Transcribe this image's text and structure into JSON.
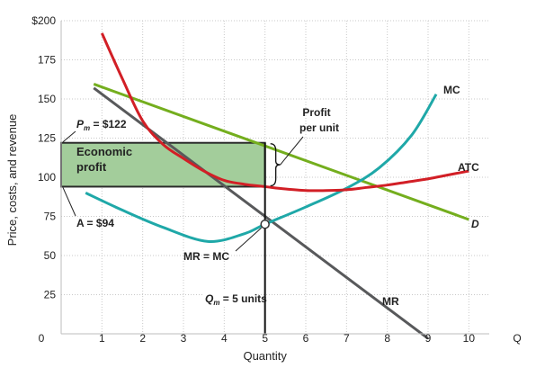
{
  "chart_data": {
    "type": "line",
    "title": "",
    "xlabel": "Quantity",
    "ylabel": "Price, costs, and revenue",
    "x_axis_symbol": "Q",
    "xlim": [
      0,
      10.5
    ],
    "ylim": [
      0,
      200
    ],
    "x_ticks": [
      0,
      1,
      2,
      3,
      4,
      5,
      6,
      7,
      8,
      9,
      10
    ],
    "y_ticks": [
      25,
      50,
      75,
      100,
      125,
      150,
      175,
      200
    ],
    "y_tick_labels": [
      "25",
      "50",
      "75",
      "100",
      "125",
      "150",
      "175",
      "$200"
    ],
    "grid": "dotted",
    "colors": {
      "MC": "#1fa8a8",
      "ATC": "#d21f26",
      "D": "#74ae1e",
      "MR": "#58595b",
      "profit_fill": "#a3cd9b",
      "profit_border": "#2b2b2b",
      "point": "#ffffff"
    },
    "series": [
      {
        "name": "MC",
        "x": [
          0.6,
          1.5,
          2.5,
          3.6,
          4.5,
          5.0,
          6.0,
          7.0,
          7.8,
          8.6,
          9.2
        ],
        "y": [
          90,
          79,
          68,
          59,
          64,
          70,
          81,
          93,
          106,
          127,
          153
        ]
      },
      {
        "name": "ATC",
        "x": [
          1.0,
          1.5,
          2.0,
          2.5,
          3.0,
          3.5,
          4.0,
          4.5,
          5.0,
          5.5,
          6.0,
          6.5,
          7.0,
          7.5,
          8.0,
          8.5,
          9.0,
          9.5,
          10.0
        ],
        "y": [
          192,
          163,
          136,
          121,
          112,
          104,
          98,
          95.5,
          94,
          92.5,
          91.5,
          91.5,
          92,
          93.5,
          95,
          97,
          99,
          101.5,
          104
        ]
      },
      {
        "name": "D",
        "x": [
          0.8,
          10.0
        ],
        "y": [
          159.5,
          73
        ]
      },
      {
        "name": "MR",
        "x": [
          0.8,
          9.0
        ],
        "y": [
          157,
          -3
        ]
      }
    ],
    "profit_area": {
      "x0": 0,
      "x1": 5,
      "y_bottom": 94,
      "y_top": 122
    },
    "key_point": {
      "x": 5,
      "y": 70
    },
    "annotations": {
      "pm": "= $122",
      "pm_prefix": "P",
      "pm_sub": "m",
      "a": "A = $94",
      "economic_profit": [
        "Economic",
        "profit"
      ],
      "profit_per_unit": [
        "Profit",
        "per unit"
      ],
      "mr_mc": "MR = MC",
      "qm_prefix": "Q",
      "qm_sub": "m",
      "qm": "= 5 units",
      "label_MC": "MC",
      "label_ATC": "ATC",
      "label_D": "D",
      "label_MR": "MR"
    }
  }
}
